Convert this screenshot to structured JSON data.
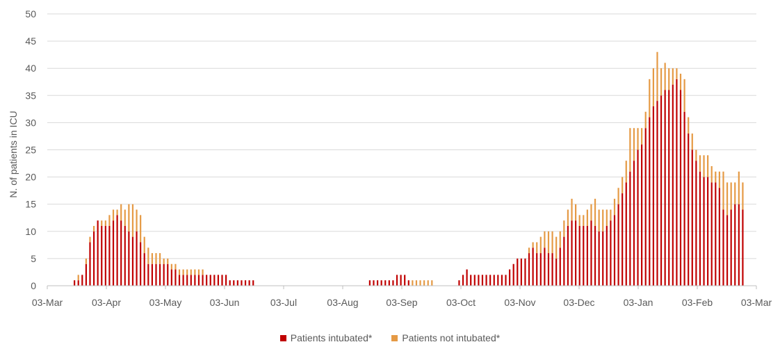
{
  "chart_data": {
    "type": "bar",
    "stacked": true,
    "xlabel": "",
    "ylabel": "N. of patients in ICU",
    "ylim": [
      0,
      50
    ],
    "yticks": [
      0,
      5,
      10,
      15,
      20,
      25,
      30,
      35,
      40,
      45,
      50
    ],
    "xlim": [
      "2020-03-03",
      "2021-03-03"
    ],
    "xtick_labels": [
      "03-Mar",
      "03-Apr",
      "03-May",
      "03-Jun",
      "03-Jul",
      "03-Aug",
      "03-Sep",
      "03-Oct",
      "03-Nov",
      "03-Dec",
      "03-Jan",
      "03-Feb",
      "03-Mar"
    ],
    "grid": "horizontal",
    "legend_position": "bottom",
    "colors": {
      "intubated": "#C00000",
      "not_intubated": "#E59A45",
      "grid": "#D9D9D9",
      "axis": "#BFBFBF"
    },
    "series": [
      {
        "name": "Patients intubated*",
        "color": "#C00000",
        "points": [
          [
            "2020-03-17",
            1
          ],
          [
            "2020-03-19",
            1
          ],
          [
            "2020-03-21",
            2
          ],
          [
            "2020-03-23",
            4
          ],
          [
            "2020-03-25",
            8
          ],
          [
            "2020-03-27",
            10
          ],
          [
            "2020-03-29",
            12
          ],
          [
            "2020-03-31",
            11
          ],
          [
            "2020-04-02",
            11
          ],
          [
            "2020-04-04",
            11
          ],
          [
            "2020-04-06",
            12
          ],
          [
            "2020-04-08",
            13
          ],
          [
            "2020-04-10",
            12
          ],
          [
            "2020-04-12",
            11
          ],
          [
            "2020-04-14",
            10
          ],
          [
            "2020-04-16",
            9
          ],
          [
            "2020-04-18",
            10
          ],
          [
            "2020-04-20",
            8
          ],
          [
            "2020-04-22",
            6
          ],
          [
            "2020-04-24",
            4
          ],
          [
            "2020-04-26",
            4
          ],
          [
            "2020-04-28",
            4
          ],
          [
            "2020-04-30",
            4
          ],
          [
            "2020-05-02",
            4
          ],
          [
            "2020-05-04",
            4
          ],
          [
            "2020-05-06",
            3
          ],
          [
            "2020-05-08",
            3
          ],
          [
            "2020-05-10",
            2
          ],
          [
            "2020-05-12",
            2
          ],
          [
            "2020-05-14",
            2
          ],
          [
            "2020-05-16",
            2
          ],
          [
            "2020-05-18",
            2
          ],
          [
            "2020-05-20",
            2
          ],
          [
            "2020-05-22",
            2
          ],
          [
            "2020-05-24",
            2
          ],
          [
            "2020-05-26",
            2
          ],
          [
            "2020-05-28",
            2
          ],
          [
            "2020-05-30",
            2
          ],
          [
            "2020-06-01",
            2
          ],
          [
            "2020-06-03",
            2
          ],
          [
            "2020-06-05",
            1
          ],
          [
            "2020-06-07",
            1
          ],
          [
            "2020-06-09",
            1
          ],
          [
            "2020-06-11",
            1
          ],
          [
            "2020-06-13",
            1
          ],
          [
            "2020-06-15",
            1
          ],
          [
            "2020-06-17",
            1
          ],
          [
            "2020-08-16",
            1
          ],
          [
            "2020-08-18",
            1
          ],
          [
            "2020-08-20",
            1
          ],
          [
            "2020-08-22",
            1
          ],
          [
            "2020-08-24",
            1
          ],
          [
            "2020-08-26",
            1
          ],
          [
            "2020-08-28",
            1
          ],
          [
            "2020-08-30",
            2
          ],
          [
            "2020-09-01",
            2
          ],
          [
            "2020-09-03",
            2
          ],
          [
            "2020-09-05",
            1
          ],
          [
            "2020-10-01",
            1
          ],
          [
            "2020-10-03",
            2
          ],
          [
            "2020-10-05",
            3
          ],
          [
            "2020-10-07",
            2
          ],
          [
            "2020-10-09",
            2
          ],
          [
            "2020-10-11",
            2
          ],
          [
            "2020-10-13",
            2
          ],
          [
            "2020-10-15",
            2
          ],
          [
            "2020-10-17",
            2
          ],
          [
            "2020-10-19",
            2
          ],
          [
            "2020-10-21",
            2
          ],
          [
            "2020-10-23",
            2
          ],
          [
            "2020-10-25",
            2
          ],
          [
            "2020-10-27",
            3
          ],
          [
            "2020-10-29",
            4
          ],
          [
            "2020-10-31",
            5
          ],
          [
            "2020-11-02",
            5
          ],
          [
            "2020-11-04",
            5
          ],
          [
            "2020-11-06",
            6
          ],
          [
            "2020-11-08",
            7
          ],
          [
            "2020-11-10",
            6
          ],
          [
            "2020-11-12",
            6
          ],
          [
            "2020-11-14",
            7
          ],
          [
            "2020-11-16",
            6
          ],
          [
            "2020-11-18",
            6
          ],
          [
            "2020-11-20",
            5
          ],
          [
            "2020-11-22",
            7
          ],
          [
            "2020-11-24",
            9
          ],
          [
            "2020-11-26",
            11
          ],
          [
            "2020-11-28",
            12
          ],
          [
            "2020-11-30",
            12
          ],
          [
            "2020-12-02",
            11
          ],
          [
            "2020-12-04",
            11
          ],
          [
            "2020-12-06",
            11
          ],
          [
            "2020-12-08",
            12
          ],
          [
            "2020-12-10",
            11
          ],
          [
            "2020-12-12",
            10
          ],
          [
            "2020-12-14",
            10
          ],
          [
            "2020-12-16",
            11
          ],
          [
            "2020-12-18",
            12
          ],
          [
            "2020-12-20",
            13
          ],
          [
            "2020-12-22",
            15
          ],
          [
            "2020-12-24",
            17
          ],
          [
            "2020-12-26",
            19
          ],
          [
            "2020-12-28",
            21
          ],
          [
            "2020-12-30",
            23
          ],
          [
            "2021-01-01",
            25
          ],
          [
            "2021-01-03",
            26
          ],
          [
            "2021-01-05",
            29
          ],
          [
            "2021-01-07",
            31
          ],
          [
            "2021-01-09",
            33
          ],
          [
            "2021-01-11",
            34
          ],
          [
            "2021-01-13",
            35
          ],
          [
            "2021-01-15",
            36
          ],
          [
            "2021-01-17",
            36
          ],
          [
            "2021-01-19",
            37
          ],
          [
            "2021-01-21",
            38
          ],
          [
            "2021-01-23",
            36
          ],
          [
            "2021-01-25",
            32
          ],
          [
            "2021-01-27",
            28
          ],
          [
            "2021-01-29",
            25
          ],
          [
            "2021-01-31",
            23
          ],
          [
            "2021-02-02",
            21
          ],
          [
            "2021-02-04",
            20
          ],
          [
            "2021-02-06",
            20
          ],
          [
            "2021-02-08",
            19
          ],
          [
            "2021-02-10",
            19
          ],
          [
            "2021-02-12",
            18
          ],
          [
            "2021-02-14",
            14
          ],
          [
            "2021-02-16",
            13
          ],
          [
            "2021-02-18",
            14
          ],
          [
            "2021-02-20",
            15
          ],
          [
            "2021-02-22",
            15
          ],
          [
            "2021-02-24",
            14
          ]
        ]
      },
      {
        "name": "Patients not intubated*",
        "color": "#E59A45",
        "points": [
          [
            "2020-03-17",
            0
          ],
          [
            "2020-03-19",
            1
          ],
          [
            "2020-03-21",
            0
          ],
          [
            "2020-03-23",
            1
          ],
          [
            "2020-03-25",
            1
          ],
          [
            "2020-03-27",
            1
          ],
          [
            "2020-03-29",
            0
          ],
          [
            "2020-03-31",
            1
          ],
          [
            "2020-04-02",
            1
          ],
          [
            "2020-04-04",
            2
          ],
          [
            "2020-04-06",
            2
          ],
          [
            "2020-04-08",
            1
          ],
          [
            "2020-04-10",
            3
          ],
          [
            "2020-04-12",
            3
          ],
          [
            "2020-04-14",
            5
          ],
          [
            "2020-04-16",
            6
          ],
          [
            "2020-04-18",
            4
          ],
          [
            "2020-04-20",
            5
          ],
          [
            "2020-04-22",
            3
          ],
          [
            "2020-04-24",
            3
          ],
          [
            "2020-04-26",
            2
          ],
          [
            "2020-04-28",
            2
          ],
          [
            "2020-04-30",
            2
          ],
          [
            "2020-05-02",
            1
          ],
          [
            "2020-05-04",
            1
          ],
          [
            "2020-05-06",
            1
          ],
          [
            "2020-05-08",
            1
          ],
          [
            "2020-05-10",
            1
          ],
          [
            "2020-05-12",
            1
          ],
          [
            "2020-05-14",
            1
          ],
          [
            "2020-05-16",
            1
          ],
          [
            "2020-05-18",
            1
          ],
          [
            "2020-05-20",
            1
          ],
          [
            "2020-05-22",
            1
          ],
          [
            "2020-05-24",
            0
          ],
          [
            "2020-05-26",
            0
          ],
          [
            "2020-05-28",
            0
          ],
          [
            "2020-05-30",
            0
          ],
          [
            "2020-06-01",
            0
          ],
          [
            "2020-06-03",
            0
          ],
          [
            "2020-06-05",
            0
          ],
          [
            "2020-06-07",
            0
          ],
          [
            "2020-06-09",
            0
          ],
          [
            "2020-06-11",
            0
          ],
          [
            "2020-06-13",
            0
          ],
          [
            "2020-06-15",
            0
          ],
          [
            "2020-06-17",
            0
          ],
          [
            "2020-08-16",
            0
          ],
          [
            "2020-08-18",
            0
          ],
          [
            "2020-08-20",
            0
          ],
          [
            "2020-08-22",
            0
          ],
          [
            "2020-08-24",
            0
          ],
          [
            "2020-08-26",
            0
          ],
          [
            "2020-08-28",
            0
          ],
          [
            "2020-08-30",
            0
          ],
          [
            "2020-09-01",
            0
          ],
          [
            "2020-09-03",
            0
          ],
          [
            "2020-09-05",
            0
          ],
          [
            "2020-09-07",
            1
          ],
          [
            "2020-09-09",
            1
          ],
          [
            "2020-09-11",
            1
          ],
          [
            "2020-09-13",
            1
          ],
          [
            "2020-09-15",
            1
          ],
          [
            "2020-09-17",
            1
          ],
          [
            "2020-10-01",
            0
          ],
          [
            "2020-10-03",
            0
          ],
          [
            "2020-10-05",
            0
          ],
          [
            "2020-10-07",
            0
          ],
          [
            "2020-10-09",
            0
          ],
          [
            "2020-10-11",
            0
          ],
          [
            "2020-10-13",
            0
          ],
          [
            "2020-10-15",
            0
          ],
          [
            "2020-10-17",
            0
          ],
          [
            "2020-10-19",
            0
          ],
          [
            "2020-10-21",
            0
          ],
          [
            "2020-10-23",
            0
          ],
          [
            "2020-10-25",
            0
          ],
          [
            "2020-10-27",
            0
          ],
          [
            "2020-10-29",
            0
          ],
          [
            "2020-10-31",
            0
          ],
          [
            "2020-11-02",
            0
          ],
          [
            "2020-11-04",
            0
          ],
          [
            "2020-11-06",
            1
          ],
          [
            "2020-11-08",
            1
          ],
          [
            "2020-11-10",
            2
          ],
          [
            "2020-11-12",
            3
          ],
          [
            "2020-11-14",
            3
          ],
          [
            "2020-11-16",
            4
          ],
          [
            "2020-11-18",
            4
          ],
          [
            "2020-11-20",
            4
          ],
          [
            "2020-11-22",
            3
          ],
          [
            "2020-11-24",
            3
          ],
          [
            "2020-11-26",
            3
          ],
          [
            "2020-11-28",
            4
          ],
          [
            "2020-11-30",
            3
          ],
          [
            "2020-12-02",
            2
          ],
          [
            "2020-12-04",
            2
          ],
          [
            "2020-12-06",
            3
          ],
          [
            "2020-12-08",
            3
          ],
          [
            "2020-12-10",
            5
          ],
          [
            "2020-12-12",
            4
          ],
          [
            "2020-12-14",
            4
          ],
          [
            "2020-12-16",
            3
          ],
          [
            "2020-12-18",
            2
          ],
          [
            "2020-12-20",
            3
          ],
          [
            "2020-12-22",
            3
          ],
          [
            "2020-12-24",
            3
          ],
          [
            "2020-12-26",
            4
          ],
          [
            "2020-12-28",
            8
          ],
          [
            "2020-12-30",
            6
          ],
          [
            "2021-01-01",
            4
          ],
          [
            "2021-01-03",
            3
          ],
          [
            "2021-01-05",
            3
          ],
          [
            "2021-01-07",
            7
          ],
          [
            "2021-01-09",
            7
          ],
          [
            "2021-01-11",
            9
          ],
          [
            "2021-01-13",
            5
          ],
          [
            "2021-01-15",
            5
          ],
          [
            "2021-01-17",
            4
          ],
          [
            "2021-01-19",
            3
          ],
          [
            "2021-01-21",
            2
          ],
          [
            "2021-01-23",
            3
          ],
          [
            "2021-01-25",
            6
          ],
          [
            "2021-01-27",
            3
          ],
          [
            "2021-01-29",
            3
          ],
          [
            "2021-01-31",
            2
          ],
          [
            "2021-02-02",
            3
          ],
          [
            "2021-02-04",
            4
          ],
          [
            "2021-02-06",
            4
          ],
          [
            "2021-02-08",
            3
          ],
          [
            "2021-02-10",
            2
          ],
          [
            "2021-02-12",
            3
          ],
          [
            "2021-02-14",
            7
          ],
          [
            "2021-02-16",
            6
          ],
          [
            "2021-02-18",
            5
          ],
          [
            "2021-02-20",
            4
          ],
          [
            "2021-02-22",
            6
          ],
          [
            "2021-02-24",
            5
          ]
        ]
      }
    ]
  }
}
